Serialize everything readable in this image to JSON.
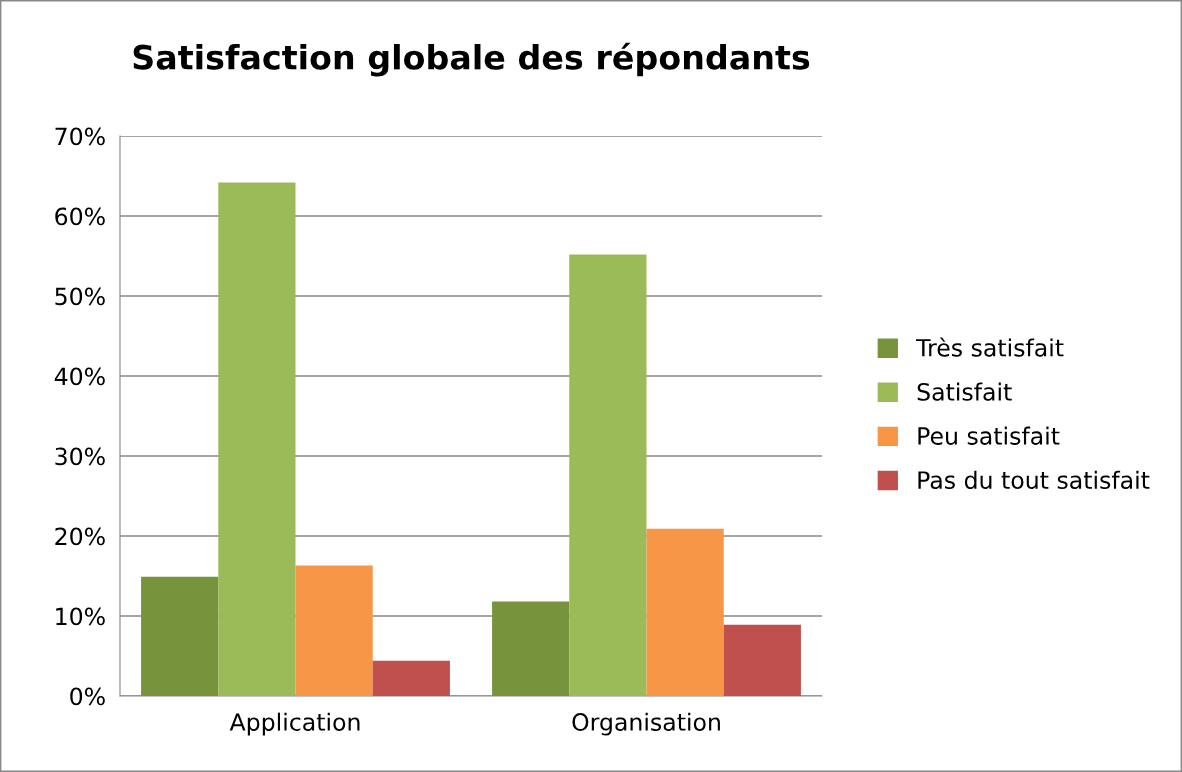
{
  "chart_data": {
    "type": "bar",
    "title": "Satisfaction globale des répondants",
    "categories": [
      "Application",
      "Organisation"
    ],
    "series": [
      {
        "name": "Très satisfait",
        "color": "#77933c",
        "values": [
          14.9,
          11.8
        ]
      },
      {
        "name": "Satisfait",
        "color": "#9bbb59",
        "values": [
          64.2,
          55.2
        ]
      },
      {
        "name": "Peu satisfait",
        "color": "#f79646",
        "values": [
          16.3,
          20.9
        ]
      },
      {
        "name": "Pas du tout satisfait",
        "color": "#c0504d",
        "values": [
          4.4,
          8.9
        ]
      }
    ],
    "ylim": [
      0,
      70
    ],
    "yticks": [
      {
        "value": 0,
        "label": "0%"
      },
      {
        "value": 10,
        "label": "10%"
      },
      {
        "value": 20,
        "label": "20%"
      },
      {
        "value": 30,
        "label": "30%"
      },
      {
        "value": 40,
        "label": "40%"
      },
      {
        "value": 50,
        "label": "50%"
      },
      {
        "value": 60,
        "label": "60%"
      },
      {
        "value": 70,
        "label": "70%"
      }
    ],
    "grid": "y",
    "legend": "right"
  }
}
